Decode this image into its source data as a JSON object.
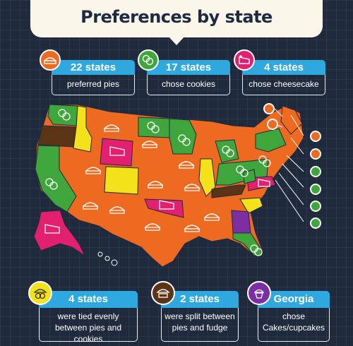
{
  "title": "Preferences by state",
  "colors": {
    "background": "#1f2a3d",
    "pies": "#ef6a21",
    "cookies": "#3ea63a",
    "cheesecake": "#e2206f",
    "tied": "#f3e11a",
    "split": "#5b3415",
    "cupcakes": "#7b2fa2",
    "header_blue": "#2fa8e0"
  },
  "top_cards": [
    {
      "headline": "22 states",
      "caption": "preferred pies",
      "icon": "pie-icon"
    },
    {
      "headline": "17 states",
      "caption": "chose cookies",
      "icon": "cookies-icon"
    },
    {
      "headline": "4 states",
      "caption": "chose cheesecake",
      "icon": "cheesecake-icon"
    }
  ],
  "bottom_cards": [
    {
      "headline": "4 states",
      "caption_line1": "were tied evenly",
      "caption_line2": "between pies and cookies",
      "icon": "pie-and-cookie-icon"
    },
    {
      "headline": "2 states",
      "caption_line1": "were split between",
      "caption_line2": "pies and fudge",
      "icon": "pie-and-fudge-icon"
    },
    {
      "headline": "Georgia",
      "caption_line1": "chose",
      "caption_line2": "Cakes/cupcakes",
      "icon": "cupcake-icon"
    }
  ]
}
